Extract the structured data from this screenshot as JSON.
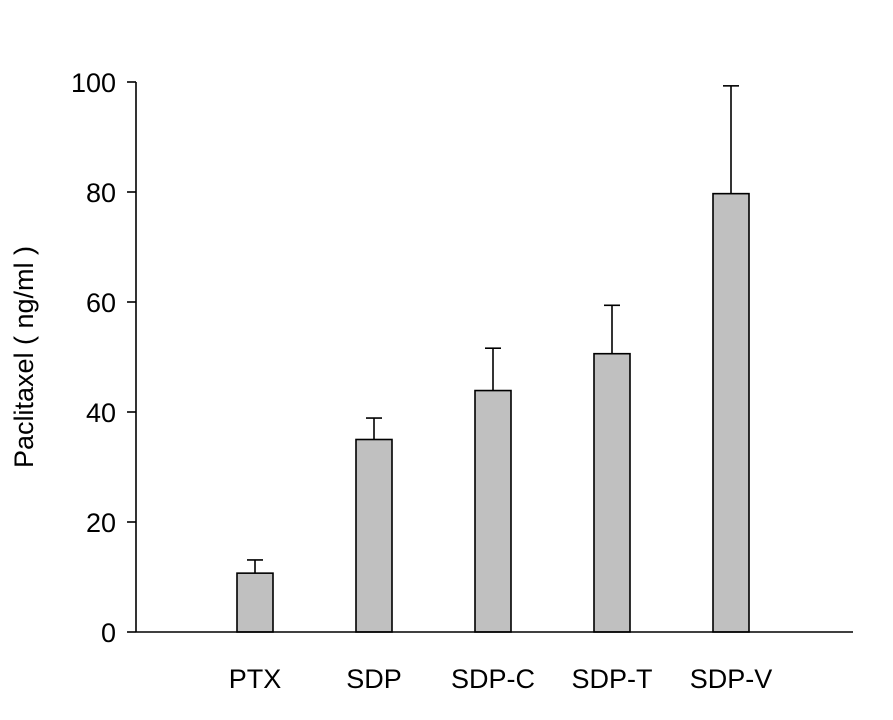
{
  "chart_data": {
    "type": "bar",
    "title": "",
    "xlabel": "",
    "ylabel": "Paclitaxel ( ng/ml )",
    "categories": [
      "PTX",
      "SDP",
      "SDP-C",
      "SDP-T",
      "SDP-V"
    ],
    "values": [
      10.7,
      35.0,
      43.9,
      50.6,
      79.7
    ],
    "error_upper": [
      2.4,
      3.9,
      7.7,
      8.8,
      19.6
    ],
    "ylim": [
      0,
      100
    ],
    "yticks": [
      0,
      20,
      40,
      60,
      80,
      100
    ],
    "grid": false,
    "legend": "none",
    "colors": {
      "bar_fill": "#c0c0c0",
      "bar_stroke": "#000000"
    }
  }
}
